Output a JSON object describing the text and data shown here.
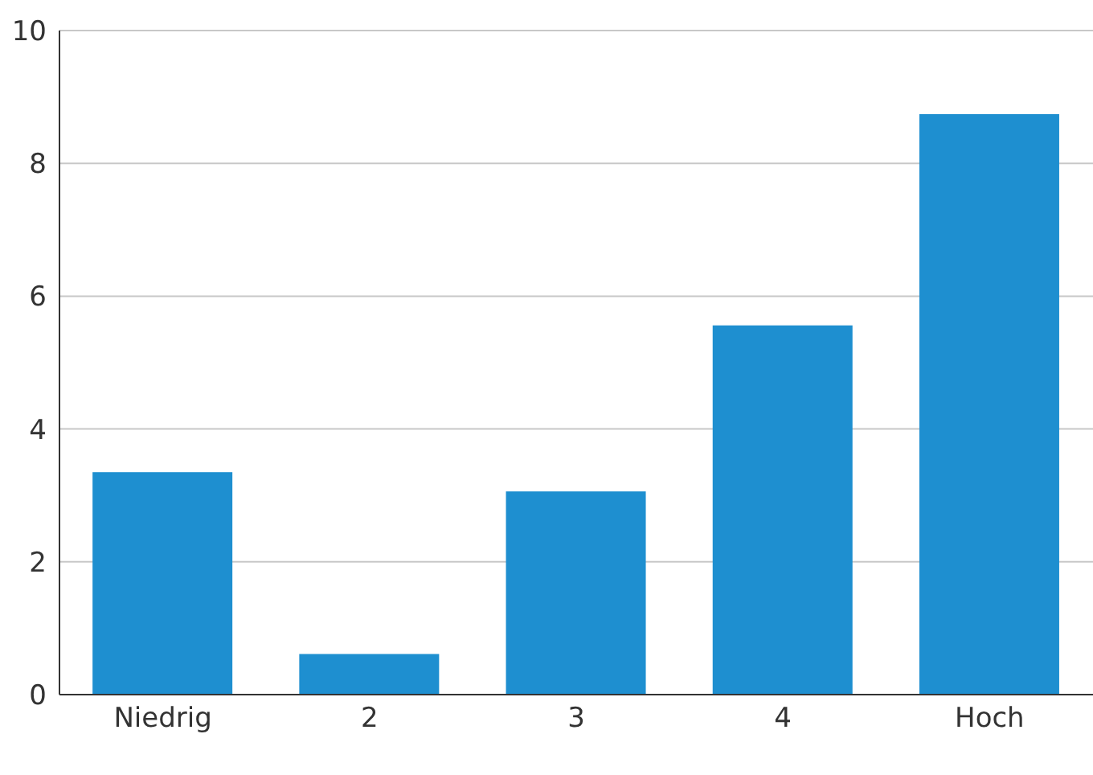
{
  "chart_data": {
    "type": "bar",
    "categories": [
      "Niedrig",
      "2",
      "3",
      "4",
      "Hoch"
    ],
    "values": [
      3.35,
      0.61,
      3.06,
      5.56,
      8.74
    ],
    "color": "#1e8fd0",
    "ylim": [
      0,
      10
    ],
    "yticks": [
      0,
      2,
      4,
      6,
      8,
      10
    ],
    "grid": "y"
  }
}
